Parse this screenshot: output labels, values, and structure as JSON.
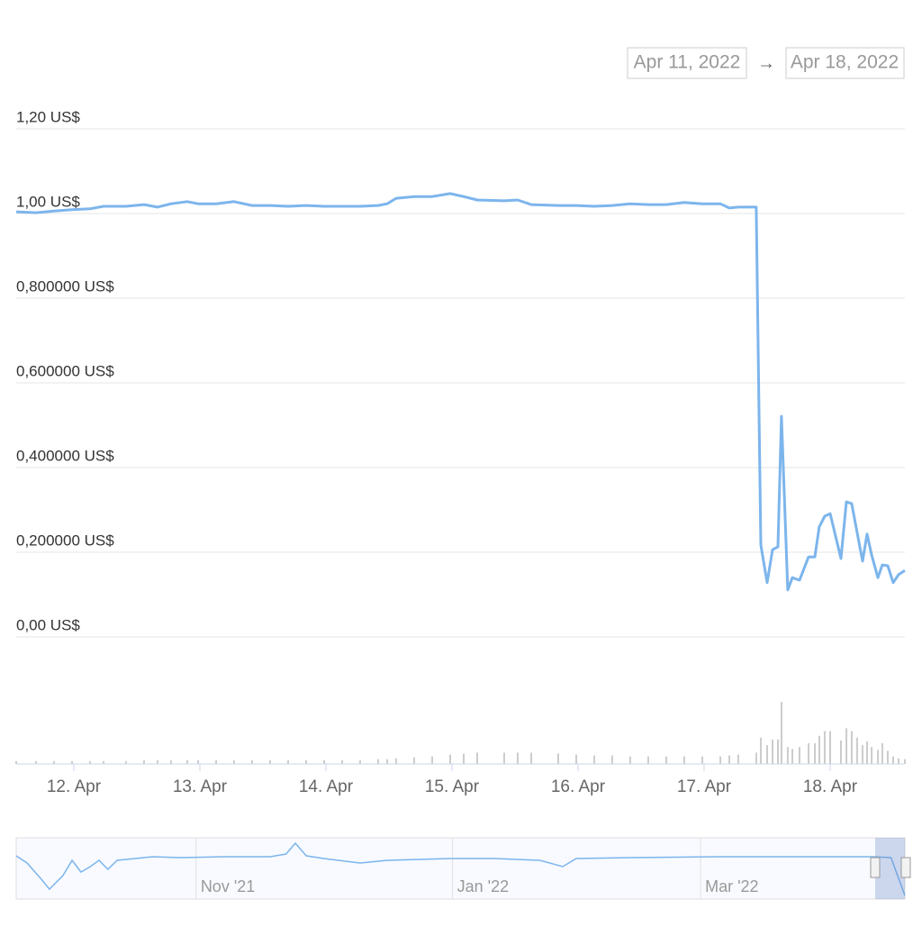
{
  "range_from": "Apr 11, 2022",
  "range_arrow": "→",
  "range_to": "Apr 18, 2022",
  "chart_data": {
    "type": "line",
    "color": "#7cb5ec",
    "grid": true,
    "ylim": [
      0,
      1.2
    ],
    "yticks": [
      {
        "value": 0,
        "label": "0,00 US$"
      },
      {
        "value": 0.2,
        "label": "0,200000 US$"
      },
      {
        "value": 0.4,
        "label": "0,400000 US$"
      },
      {
        "value": 0.6,
        "label": "0,600000 US$"
      },
      {
        "value": 0.8,
        "label": "0,800000 US$"
      },
      {
        "value": 1,
        "label": "1,00 US$"
      },
      {
        "value": 1.2,
        "label": "1,20 US$"
      }
    ],
    "xlim": [
      0.543,
      7.593
    ],
    "xticks": [
      {
        "value": 1,
        "label": "12. Apr"
      },
      {
        "value": 2,
        "label": "13. Apr"
      },
      {
        "value": 3,
        "label": "14. Apr"
      },
      {
        "value": 4,
        "label": "15. Apr"
      },
      {
        "value": 5,
        "label": "16. Apr"
      },
      {
        "value": 6,
        "label": "17. Apr"
      },
      {
        "value": 7,
        "label": "18. Apr"
      }
    ],
    "x": [
      0.543,
      0.7,
      0.843,
      0.986,
      1.129,
      1.236,
      1.414,
      1.557,
      1.664,
      1.771,
      1.9,
      1.986,
      2.129,
      2.271,
      2.414,
      2.557,
      2.7,
      2.843,
      2.986,
      3.129,
      3.271,
      3.414,
      3.486,
      3.557,
      3.7,
      3.843,
      3.986,
      4.093,
      4.2,
      4.414,
      4.521,
      4.629,
      4.843,
      4.986,
      5.129,
      5.271,
      5.414,
      5.557,
      5.7,
      5.843,
      5.986,
      6.129,
      6.2,
      6.271,
      6.414,
      6.45,
      6.5,
      6.543,
      6.586,
      6.614,
      6.664,
      6.7,
      6.757,
      6.829,
      6.879,
      6.914,
      6.957,
      7.0,
      7.086,
      7.129,
      7.171,
      7.214,
      7.257,
      7.293,
      7.329,
      7.379,
      7.414,
      7.457,
      7.5,
      7.543,
      7.593
    ],
    "values": [
      1.004,
      1.002,
      1.006,
      1.009,
      1.011,
      1.017,
      1.017,
      1.021,
      1.015,
      1.023,
      1.028,
      1.023,
      1.023,
      1.028,
      1.019,
      1.019,
      1.017,
      1.019,
      1.017,
      1.017,
      1.017,
      1.019,
      1.023,
      1.036,
      1.04,
      1.04,
      1.047,
      1.04,
      1.032,
      1.03,
      1.032,
      1.021,
      1.019,
      1.019,
      1.017,
      1.019,
      1.023,
      1.021,
      1.021,
      1.026,
      1.023,
      1.023,
      1.013,
      1.015,
      1.015,
      0.217,
      0.128,
      0.206,
      0.213,
      0.521,
      0.111,
      0.14,
      0.134,
      0.189,
      0.189,
      0.26,
      0.285,
      0.291,
      0.185,
      0.319,
      0.315,
      0.247,
      0.179,
      0.243,
      0.194,
      0.14,
      0.17,
      0.168,
      0.128,
      0.147,
      0.157
    ],
    "volume_color": "#cccccc",
    "volume_ylim": [
      0,
      70
    ],
    "volume": [
      3,
      3,
      3,
      3,
      3,
      3,
      3,
      4,
      4,
      4,
      4,
      4,
      4,
      4,
      4,
      4,
      4,
      4,
      4,
      4,
      4,
      5,
      5,
      6,
      7,
      8,
      10,
      11,
      12,
      12,
      12,
      12,
      11,
      10,
      9,
      9,
      8,
      8,
      8,
      8,
      8,
      8,
      9,
      10,
      12,
      28,
      20,
      26,
      26,
      66,
      18,
      16,
      18,
      22,
      22,
      30,
      35,
      35,
      25,
      38,
      35,
      28,
      20,
      24,
      18,
      15,
      22,
      14,
      8,
      6,
      5
    ],
    "navigator": {
      "xlim": [
        18.2,
        229.6
      ],
      "ylim": [
        0,
        1.4
      ],
      "xticks": [
        {
          "value": 61,
          "label": "Nov '21"
        },
        {
          "value": 122,
          "label": "Jan '22"
        },
        {
          "value": 181,
          "label": "Mar '22"
        }
      ],
      "x": [
        18.2,
        20.8,
        24.0,
        26.1,
        29.3,
        31.5,
        33.6,
        35.8,
        37.9,
        40.0,
        42.2,
        46.5,
        50.7,
        57.2,
        67.9,
        78.6,
        82.4,
        84.6,
        87.2,
        91.4,
        100.0,
        106.4,
        121.4,
        132.1,
        142.8,
        148.2,
        151.4,
        164.3,
        185.7,
        207.1,
        222.1,
        226.3,
        228.1,
        229.6
      ],
      "values": [
        1.05,
        0.863,
        0.467,
        0.187,
        0.537,
        0.933,
        0.63,
        0.77,
        0.933,
        0.7,
        0.933,
        0.98,
        1.027,
        1.003,
        1.027,
        1.027,
        1.097,
        1.377,
        1.05,
        0.98,
        0.863,
        0.933,
        0.98,
        0.98,
        0.933,
        0.77,
        0.98,
        1.003,
        1.027,
        1.027,
        1.027,
        1.003,
        0.467,
        0.023
      ]
    }
  }
}
